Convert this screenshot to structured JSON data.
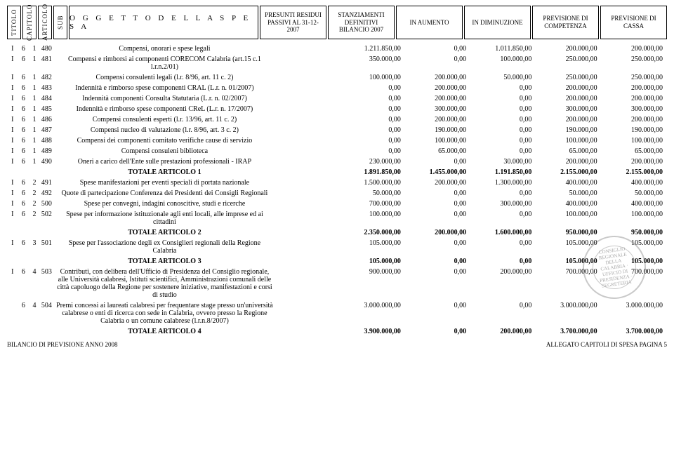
{
  "headers": {
    "code_cols": [
      "TITOLO",
      "CAPITOLO",
      "ARTICOLO",
      "SUB"
    ],
    "oggetto": "O G G E T T O   D E L L A   S P E S A",
    "value_cols": [
      "PRESUNTI RESIDUI PASSIVI AL 31-12-2007",
      "STANZIAMENTI DEFINITIVI BILANCIO 2007",
      "IN AUMENTO",
      "IN DIMINUZIONE",
      "PREVISIONE DI COMPETENZA",
      "PREVISIONE DI CASSA"
    ]
  },
  "rows": [
    {
      "c": [
        "I",
        "6",
        "1",
        "480"
      ],
      "d": "Compensi, onorari e spese legali",
      "v": [
        "1.211.850,00",
        "0,00",
        "1.011.850,00",
        "200.000,00",
        "200.000,00"
      ],
      "pr": ""
    },
    {
      "c": [
        "I",
        "6",
        "1",
        "481"
      ],
      "d": "Compensi e rimborsi ai componenti CORECOM Calabria (art.15 c.1 l.r.n.2/01)",
      "v": [
        "350.000,00",
        "0,00",
        "100.000,00",
        "250.000,00",
        "250.000,00"
      ],
      "pr": ""
    },
    {
      "c": [
        "I",
        "6",
        "1",
        "482"
      ],
      "d": "Compensi consulenti legali (l.r. 8/96, art. 11 c. 2)",
      "v": [
        "100.000,00",
        "200.000,00",
        "50.000,00",
        "250.000,00",
        "250.000,00"
      ],
      "pr": ""
    },
    {
      "c": [
        "I",
        "6",
        "1",
        "483"
      ],
      "d": "Indennità e rimborso spese componenti CRAL (L.r. n. 01/2007)",
      "v": [
        "0,00",
        "200.000,00",
        "0,00",
        "200.000,00",
        "200.000,00"
      ],
      "pr": ""
    },
    {
      "c": [
        "I",
        "6",
        "1",
        "484"
      ],
      "d": "Indennità componenti Consulta Statutaria (L.r. n. 02/2007)",
      "v": [
        "0,00",
        "200.000,00",
        "0,00",
        "200.000,00",
        "200.000,00"
      ],
      "pr": ""
    },
    {
      "c": [
        "I",
        "6",
        "1",
        "485"
      ],
      "d": "Indennità e rimborso spese componenti CReL (L.r. n. 17/2007)",
      "v": [
        "0,00",
        "300.000,00",
        "0,00",
        "300.000,00",
        "300.000,00"
      ],
      "pr": ""
    },
    {
      "c": [
        "I",
        "6",
        "1",
        "486"
      ],
      "d": "Compensi consulenti esperti (l.r. 13/96, art. 11 c. 2)",
      "v": [
        "0,00",
        "200.000,00",
        "0,00",
        "200.000,00",
        "200.000,00"
      ],
      "pr": ""
    },
    {
      "c": [
        "I",
        "6",
        "1",
        "487"
      ],
      "d": "Compensi nucleo di valutazione  (l.r. 8/96, art. 3 c. 2)",
      "v": [
        "0,00",
        "190.000,00",
        "0,00",
        "190.000,00",
        "190.000,00"
      ],
      "pr": ""
    },
    {
      "c": [
        "I",
        "6",
        "1",
        "488"
      ],
      "d": "Compensi dei componenti comitato verifiche cause di servizio",
      "v": [
        "0,00",
        "100.000,00",
        "0,00",
        "100.000,00",
        "100.000,00"
      ],
      "pr": ""
    },
    {
      "c": [
        "I",
        "6",
        "1",
        "489"
      ],
      "d": "Compensi consuleni biblioteca",
      "v": [
        "0,00",
        "65.000,00",
        "0,00",
        "65.000,00",
        "65.000,00"
      ],
      "pr": ""
    },
    {
      "c": [
        "I",
        "6",
        "1",
        "490"
      ],
      "d": "Oneri a carico dell'Ente sulle prestazioni professionali - IRAP",
      "v": [
        "230.000,00",
        "0,00",
        "30.000,00",
        "200.000,00",
        "200.000,00"
      ],
      "pr": ""
    },
    {
      "c": [
        "",
        "",
        "",
        ""
      ],
      "d": "TOTALE ARTICOLO 1",
      "v": [
        "1.891.850,00",
        "1.455.000,00",
        "1.191.850,00",
        "2.155.000,00",
        "2.155.000,00"
      ],
      "total": true,
      "pr": ""
    },
    {
      "c": [
        "I",
        "6",
        "2",
        "491"
      ],
      "d": "Spese manifestazioni per eventi speciali di portata nazionale",
      "v": [
        "1.500.000,00",
        "200.000,00",
        "1.300.000,00",
        "400.000,00",
        "400.000,00"
      ],
      "pr": ""
    },
    {
      "c": [
        "I",
        "6",
        "2",
        "492"
      ],
      "d": "Quote di partecipazione Conferenza dei Presidenti dei Consigli Regionali",
      "v": [
        "50.000,00",
        "0,00",
        "0,00",
        "50.000,00",
        "50.000,00"
      ],
      "pr": ""
    },
    {
      "c": [
        "I",
        "6",
        "2",
        "500"
      ],
      "d": "Spese per convegni, indagini conoscitive, studi e ricerche",
      "v": [
        "700.000,00",
        "0,00",
        "300.000,00",
        "400.000,00",
        "400.000,00"
      ],
      "pr": ""
    },
    {
      "c": [
        "I",
        "6",
        "2",
        "502"
      ],
      "d": "Spese per informazione istituzionale agli enti locali, alle imprese ed ai cittadini",
      "v": [
        "100.000,00",
        "0,00",
        "0,00",
        "100.000,00",
        "100.000,00"
      ],
      "pr": ""
    },
    {
      "c": [
        "",
        "",
        "",
        ""
      ],
      "d": "TOTALE ARTICOLO 2",
      "v": [
        "2.350.000,00",
        "200.000,00",
        "1.600.000,00",
        "950.000,00",
        "950.000,00"
      ],
      "total": true,
      "pr": ""
    },
    {
      "c": [
        "I",
        "6",
        "3",
        "501"
      ],
      "d": "Spese per l'associazione degli ex Consiglieri regionali della Regione Calabria",
      "v": [
        "105.000,00",
        "0,00",
        "0,00",
        "105.000,00",
        "105.000,00"
      ],
      "pr": ""
    },
    {
      "c": [
        "",
        "",
        "",
        ""
      ],
      "d": "TOTALE ARTICOLO 3",
      "v": [
        "105.000,00",
        "0,00",
        "0,00",
        "105.000,00",
        "105.000,00"
      ],
      "total": true,
      "pr": ""
    },
    {
      "c": [
        "I",
        "6",
        "4",
        "503"
      ],
      "d": "Contributi, con delibera dell'Ufficio di Presidenza del Consiglio regionale, alle Università calabresi, Istituti scientifici, Amministrazioni comunali delle città capoluogo della Regione per sostenere iniziative, manifestazioni e corsi di studio",
      "v": [
        "900.000,00",
        "0,00",
        "200.000,00",
        "700.000,00",
        "700.000,00"
      ],
      "pr": ""
    },
    {
      "c": [
        "",
        "6",
        "4",
        "504"
      ],
      "d": "Premi concessi ai laureati calabresi per frequentare stage presso un'università calabrese o enti di ricerca con sede in Calabria, ovvero presso la Regione Calabria o un comune calabrese (l.r.n.8/2007)",
      "v": [
        "3.000.000,00",
        "0,00",
        "0,00",
        "3.000.000,00",
        "3.000.000,00"
      ],
      "pr": ""
    },
    {
      "c": [
        "",
        "",
        "",
        ""
      ],
      "d": "TOTALE ARTICOLO 4",
      "v": [
        "3.900.000,00",
        "0,00",
        "200.000,00",
        "3.700.000,00",
        "3.700.000,00"
      ],
      "total": true,
      "pr": ""
    }
  ],
  "footer": {
    "left": "BILANCIO DI PREVISIONE ANNO 2008",
    "right": "ALLEGATO CAPITOLI DI SPESA PAGINA 5"
  },
  "stamp": "CONSIGLIO REGIONALE DELLA CALABRIA · UFFICIO DI PRESIDENZA · SEGRETERIA"
}
